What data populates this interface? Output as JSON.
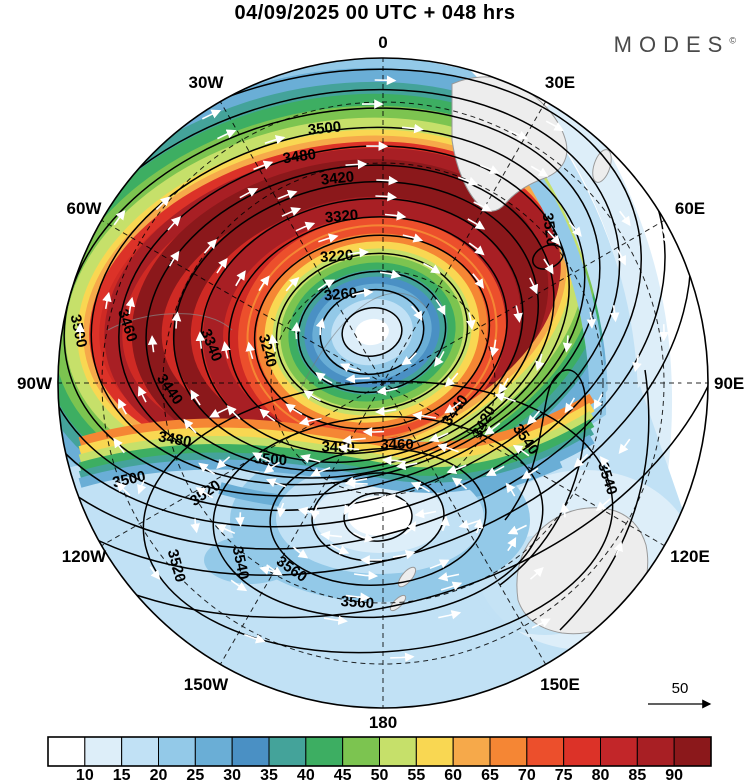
{
  "header": {
    "title": "04/09/2025  00 UTC  + 048 hrs"
  },
  "logo": {
    "text": "MODES",
    "mark": "©"
  },
  "map": {
    "projection": "south-polar-stereographic",
    "longitude_labels": [
      "0",
      "30E",
      "60E",
      "90E",
      "120E",
      "150E",
      "180",
      "150W",
      "120W",
      "90W",
      "60W",
      "30W"
    ],
    "contour_labels": [
      "3500",
      "3480",
      "3420",
      "3320",
      "3220",
      "3260",
      "3240",
      "3340",
      "3440",
      "3460",
      "3500",
      "3480",
      "3500",
      "3480",
      "3460",
      "3440",
      "3420",
      "3520",
      "3520",
      "3520",
      "3540",
      "3560",
      "3560",
      "3540",
      "3540",
      "3500"
    ]
  },
  "colorbar": {
    "levels": [
      10,
      15,
      20,
      25,
      30,
      35,
      40,
      45,
      50,
      55,
      60,
      65,
      70,
      75,
      80,
      85,
      90
    ],
    "colors": [
      "#ffffff",
      "#ddeef9",
      "#c1e1f5",
      "#93c9e8",
      "#6aaed6",
      "#4a90c4",
      "#44a39a",
      "#3dae62",
      "#7cc450",
      "#c6e06a",
      "#f9d752",
      "#f6a94a",
      "#f58634",
      "#ec4f2c",
      "#dc3228",
      "#c22629",
      "#a81f24",
      "#8b181b"
    ]
  },
  "reference_arrow": {
    "label": "50"
  },
  "chart_data": {
    "type": "contour-map",
    "title": "04/09/2025  00 UTC  + 048 hrs",
    "shading": {
      "legend_levels": [
        10,
        15,
        20,
        25,
        30,
        35,
        40,
        45,
        50,
        55,
        60,
        65,
        70,
        75,
        80,
        85,
        90
      ],
      "legend_colors": [
        "#ffffff",
        "#ddeef9",
        "#c1e1f5",
        "#93c9e8",
        "#6aaed6",
        "#4a90c4",
        "#44a39a",
        "#3dae62",
        "#7cc450",
        "#c6e06a",
        "#f9d752",
        "#f6a94a",
        "#f58634",
        "#ec4f2c",
        "#dc3228",
        "#c22629",
        "#a81f24",
        "#8b181b"
      ],
      "legend_position": "bottom"
    },
    "contours": {
      "interval": 20,
      "labeled_values": [
        3220,
        3240,
        3260,
        3320,
        3340,
        3420,
        3440,
        3460,
        3480,
        3500,
        3520,
        3540,
        3560
      ]
    },
    "vectors": {
      "reference_value": 50,
      "style": "white curved arrows"
    },
    "meridian_labels": [
      "0",
      "30E",
      "60E",
      "90E",
      "120E",
      "150E",
      "180",
      "150W",
      "120W",
      "90W",
      "60W",
      "30W"
    ],
    "features": {
      "low_center": "closed cyclonic circulation with calm white/blue core slightly right of map center, ringed by dark-red wind maximum",
      "high_center": "closed anticyclonic circulation with white core in lower-middle sector near 180"
    }
  }
}
